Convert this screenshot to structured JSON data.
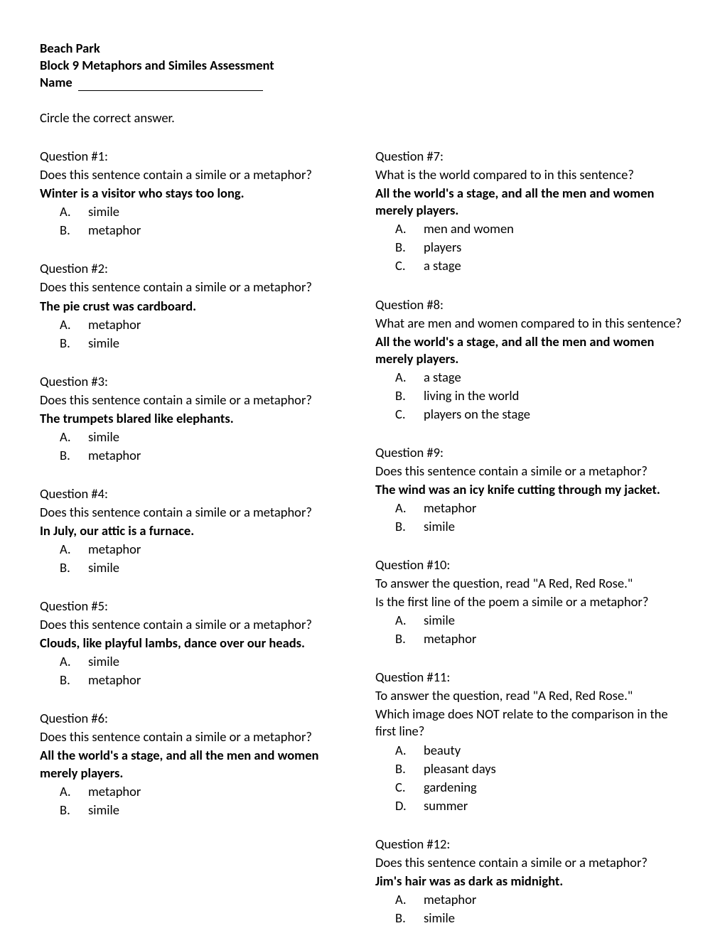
{
  "header": {
    "school": "Beach Park",
    "title": "Block 9 Metaphors and Similes Assessment",
    "name_label": "Name"
  },
  "instructions": "Circle the correct answer.",
  "left": [
    {
      "num": "Question #1:",
      "prompt": "Does this sentence contain a simile or a metaphor?",
      "emph": "Winter is a visitor who stays too long.",
      "options": [
        {
          "letter": "A.",
          "text": "simile"
        },
        {
          "letter": "B.",
          "text": "metaphor"
        }
      ]
    },
    {
      "num": "Question #2:",
      "prompt": "Does this sentence contain a simile or a metaphor?",
      "emph": "The pie crust was cardboard.",
      "options": [
        {
          "letter": "A.",
          "text": "metaphor"
        },
        {
          "letter": "B.",
          "text": "simile"
        }
      ]
    },
    {
      "num": "Question #3:",
      "prompt": "Does this sentence contain a simile or a metaphor?",
      "emph": "The trumpets blared like elephants.",
      "options": [
        {
          "letter": "A.",
          "text": "simile"
        },
        {
          "letter": "B.",
          "text": "metaphor"
        }
      ]
    },
    {
      "num": "Question #4:",
      "prompt": "Does this sentence contain a simile or a metaphor?",
      "emph": "In July, our attic is a furnace.",
      "options": [
        {
          "letter": "A.",
          "text": "metaphor"
        },
        {
          "letter": "B.",
          "text": "simile"
        }
      ]
    },
    {
      "num": "Question #5:",
      "prompt": "Does this sentence contain a simile or a metaphor?",
      "emph": "Clouds, like playful lambs, dance over our heads.",
      "options": [
        {
          "letter": "A.",
          "text": "simile"
        },
        {
          "letter": "B.",
          "text": "metaphor"
        }
      ]
    },
    {
      "num": "Question #6:",
      "prompt": "Does this sentence contain a simile or a metaphor?",
      "emph": "All the world's a stage, and all the men and women merely players.",
      "options": [
        {
          "letter": "A.",
          "text": "metaphor"
        },
        {
          "letter": "B.",
          "text": "simile"
        }
      ]
    }
  ],
  "right": [
    {
      "num": "Question #7:",
      "prompt": "What is the world compared to in this sentence?",
      "emph": "All the world's a stage, and all the men and women merely players.",
      "options": [
        {
          "letter": "A.",
          "text": "men and women"
        },
        {
          "letter": "B.",
          "text": "players"
        },
        {
          "letter": "C.",
          "text": "a stage"
        }
      ]
    },
    {
      "num": "Question #8:",
      "prompt": "What are men and women compared to in this sentence?",
      "emph": "All the world's a stage, and all the men and women merely players.",
      "options": [
        {
          "letter": "A.",
          "text": "a stage"
        },
        {
          "letter": "B.",
          "text": "living in the world"
        },
        {
          "letter": "C.",
          "text": "players on the stage"
        }
      ]
    },
    {
      "num": "Question #9:",
      "prompt": "Does this sentence contain a simile or a metaphor?",
      "emph": "The wind was an icy knife cutting through my jacket.",
      "options": [
        {
          "letter": "A.",
          "text": "metaphor"
        },
        {
          "letter": "B.",
          "text": "simile"
        }
      ]
    },
    {
      "num": "Question #10:",
      "prompt": "To answer the question, read \"A Red, Red Rose.\"",
      "prompt2": "Is the first line of the poem a simile or a metaphor?",
      "options": [
        {
          "letter": "A.",
          "text": "simile"
        },
        {
          "letter": "B.",
          "text": "metaphor"
        }
      ]
    },
    {
      "num": "Question #11:",
      "prompt": "To answer the question, read \"A Red, Red Rose.\"",
      "prompt2": "Which image does NOT relate to the comparison in the first line?",
      "options": [
        {
          "letter": "A.",
          "text": "beauty"
        },
        {
          "letter": "B.",
          "text": "pleasant days"
        },
        {
          "letter": "C.",
          "text": "gardening"
        },
        {
          "letter": "D.",
          "text": "summer"
        }
      ]
    },
    {
      "num": "Question #12:",
      "prompt": "Does this sentence contain a simile or a metaphor?",
      "emph": "Jim's hair was as dark as midnight.",
      "options": [
        {
          "letter": "A.",
          "text": "metaphor"
        },
        {
          "letter": "B.",
          "text": "simile"
        }
      ]
    }
  ]
}
